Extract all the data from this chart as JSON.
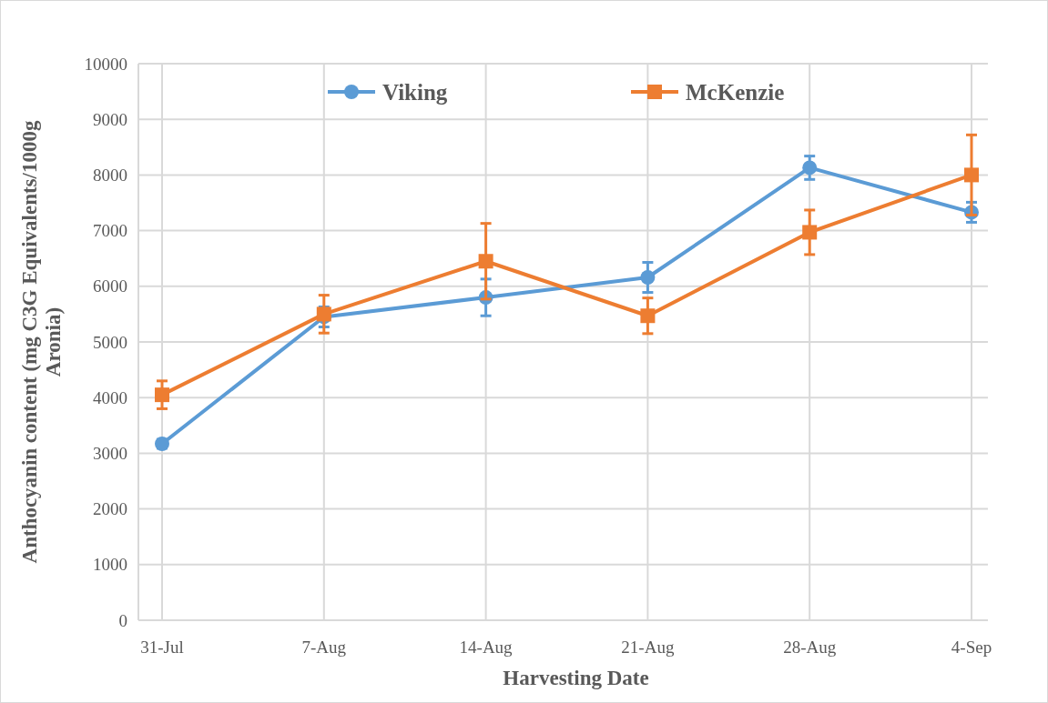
{
  "chart_data": {
    "type": "line",
    "xlabel": "Harvesting Date",
    "ylabel": "Anthocyanin content (mg C3G Equivalents/1000g Aronia)",
    "categories": [
      "31-Jul",
      "7-Aug",
      "14-Aug",
      "21-Aug",
      "28-Aug",
      "4-Sep"
    ],
    "series": [
      {
        "name": "Viking",
        "color": "#5b9bd5",
        "marker": "circle",
        "values": [
          3170,
          5450,
          5800,
          6160,
          8130,
          7330
        ],
        "errors": [
          80,
          180,
          330,
          270,
          210,
          180
        ]
      },
      {
        "name": "McKenzie",
        "color": "#ed7d31",
        "marker": "square",
        "values": [
          4050,
          5500,
          6450,
          5470,
          6970,
          8000
        ],
        "errors": [
          250,
          340,
          680,
          320,
          400,
          720
        ]
      }
    ],
    "ylim": [
      0,
      10000
    ],
    "yticks": [
      0,
      1000,
      2000,
      3000,
      4000,
      5000,
      6000,
      7000,
      8000,
      9000,
      10000
    ],
    "grid": true,
    "legend": "top"
  }
}
